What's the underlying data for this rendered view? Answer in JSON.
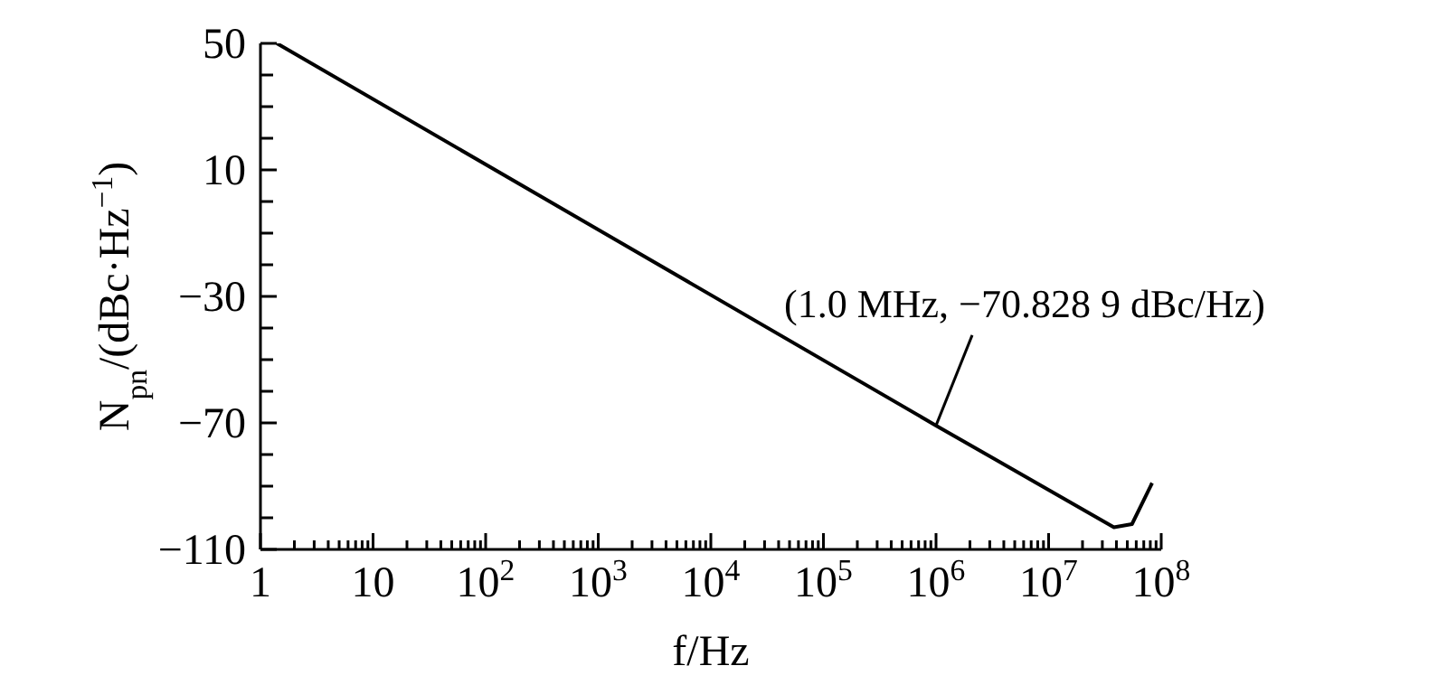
{
  "chart_data": {
    "type": "line",
    "xlabel": "f/Hz",
    "ylabel": "N$_{pn}$/(dBc·Hz$^{−1}$)",
    "log": "x",
    "marker": "none",
    "line_style": "solid",
    "xlim": [
      1,
      100000000
    ],
    "ylim": [
      -110,
      50
    ],
    "xticks": [
      1,
      {
        "value": 2,
        "label": null
      },
      {
        "value": 3,
        "label": null
      },
      {
        "value": 4,
        "label": null
      },
      {
        "value": 5,
        "label": null
      },
      {
        "value": 6,
        "label": null
      },
      {
        "value": 7,
        "label": null
      },
      {
        "value": 8,
        "label": null
      },
      {
        "value": 9,
        "label": null
      },
      10,
      {
        "value": 20,
        "label": null
      },
      {
        "value": 30,
        "label": null
      },
      {
        "value": 40,
        "label": null
      },
      {
        "value": 50,
        "label": null
      },
      {
        "value": 60,
        "label": null
      },
      {
        "value": 70,
        "label": null
      },
      {
        "value": 80,
        "label": null
      },
      {
        "value": 90,
        "label": null
      },
      {
        "value": 100,
        "label": "10$^{2}$"
      },
      {
        "value": 200,
        "label": null
      },
      {
        "value": 300,
        "label": null
      },
      {
        "value": 400,
        "label": null
      },
      {
        "value": 500,
        "label": null
      },
      {
        "value": 600,
        "label": null
      },
      {
        "value": 700,
        "label": null
      },
      {
        "value": 800,
        "label": null
      },
      {
        "value": 900,
        "label": null
      },
      {
        "value": 1000,
        "label": "10$^{3}$"
      },
      {
        "value": 2000,
        "label": null
      },
      {
        "value": 3000,
        "label": null
      },
      {
        "value": 4000,
        "label": null
      },
      {
        "value": 5000,
        "label": null
      },
      {
        "value": 6000,
        "label": null
      },
      {
        "value": 7000,
        "label": null
      },
      {
        "value": 8000,
        "label": null
      },
      {
        "value": 9000,
        "label": null
      },
      {
        "value": 10000,
        "label": "10$^{4}$"
      },
      {
        "value": 20000,
        "label": null
      },
      {
        "value": 30000,
        "label": null
      },
      {
        "value": 40000,
        "label": null
      },
      {
        "value": 50000,
        "label": null
      },
      {
        "value": 60000,
        "label": null
      },
      {
        "value": 70000,
        "label": null
      },
      {
        "value": 80000,
        "label": null
      },
      {
        "value": 90000,
        "label": null
      },
      {
        "value": 100000,
        "label": "10$^{5}$"
      },
      {
        "value": 200000,
        "label": null
      },
      {
        "value": 300000,
        "label": null
      },
      {
        "value": 400000,
        "label": null
      },
      {
        "value": 500000,
        "label": null
      },
      {
        "value": 600000,
        "label": null
      },
      {
        "value": 700000,
        "label": null
      },
      {
        "value": 800000,
        "label": null
      },
      {
        "value": 900000,
        "label": null
      },
      {
        "value": 1000000,
        "label": "10$^{6}$"
      },
      {
        "value": 2000000,
        "label": null
      },
      {
        "value": 3000000,
        "label": null
      },
      {
        "value": 4000000,
        "label": null
      },
      {
        "value": 5000000,
        "label": null
      },
      {
        "value": 6000000,
        "label": null
      },
      {
        "value": 7000000,
        "label": null
      },
      {
        "value": 8000000,
        "label": null
      },
      {
        "value": 9000000,
        "label": null
      },
      {
        "value": 10000000,
        "label": "10$^{7}$"
      },
      {
        "value": 20000000,
        "label": null
      },
      {
        "value": 30000000,
        "label": null
      },
      {
        "value": 40000000,
        "label": null
      },
      {
        "value": 50000000,
        "label": null
      },
      {
        "value": 60000000,
        "label": null
      },
      {
        "value": 70000000,
        "label": null
      },
      {
        "value": 80000000,
        "label": null
      },
      {
        "value": 90000000,
        "label": null
      },
      {
        "value": 100000000,
        "label": "10$^{8}$"
      }
    ],
    "yticks": [
      50,
      {
        "value": 40,
        "label": null
      },
      {
        "value": 30,
        "label": null
      },
      {
        "value": 20,
        "label": null
      },
      10,
      {
        "value": 0,
        "label": null
      },
      {
        "value": -10,
        "label": null
      },
      {
        "value": -20,
        "label": null
      },
      -30,
      {
        "value": -40,
        "label": null
      },
      {
        "value": -50,
        "label": null
      },
      {
        "value": -60,
        "label": null
      },
      -70,
      {
        "value": -80,
        "label": null
      },
      {
        "value": -90,
        "label": null
      },
      {
        "value": -100,
        "label": null
      },
      -110
    ],
    "series": [
      {
        "color": "#000000",
        "x": [
          1.4,
          1000000,
          38000000,
          55000000,
          83000000
        ],
        "values": [
          50,
          -70.8289,
          -103,
          -102,
          -89
        ]
      }
    ],
    "annotations": [
      {
        "text": "(1.0 MHz, −70.828 9 dBc/Hz)",
        "x": 1000000,
        "y": -70.8289
      }
    ]
  }
}
